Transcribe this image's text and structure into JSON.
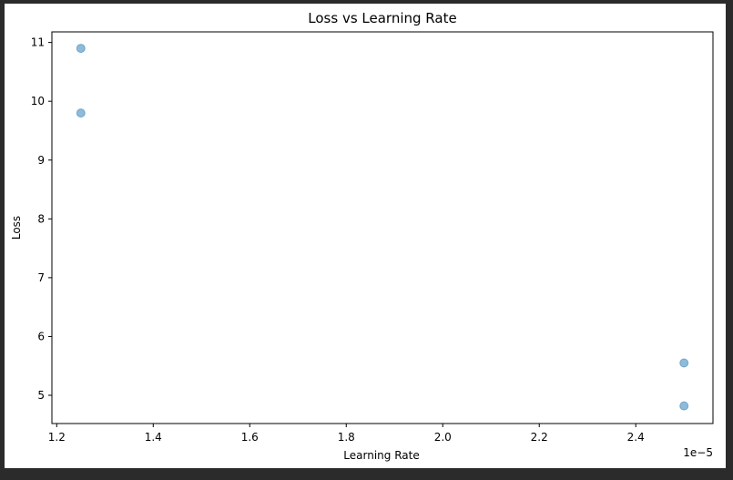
{
  "chart_data": {
    "type": "scatter",
    "title": "Loss vs Learning Rate",
    "xlabel": "Learning Rate",
    "ylabel": "Loss",
    "x_offset_label": "1e−5",
    "xlim": [
      1.19,
      2.56
    ],
    "ylim": [
      4.52,
      11.18
    ],
    "x_ticks": [
      1.2,
      1.4,
      1.6,
      1.8,
      2.0,
      2.2,
      2.4
    ],
    "x_tick_labels": [
      "1.2",
      "1.4",
      "1.6",
      "1.8",
      "2.0",
      "2.2",
      "2.4"
    ],
    "y_ticks": [
      5,
      6,
      7,
      8,
      9,
      10,
      11
    ],
    "y_tick_labels": [
      "5",
      "6",
      "7",
      "8",
      "9",
      "10",
      "11"
    ],
    "grid": false,
    "marker_color": "#1f77b4",
    "marker_alpha": 0.5,
    "points": [
      {
        "x": 1.25,
        "y": 10.9
      },
      {
        "x": 1.25,
        "y": 9.8
      },
      {
        "x": 2.5,
        "y": 5.55
      },
      {
        "x": 2.5,
        "y": 4.82
      }
    ]
  }
}
